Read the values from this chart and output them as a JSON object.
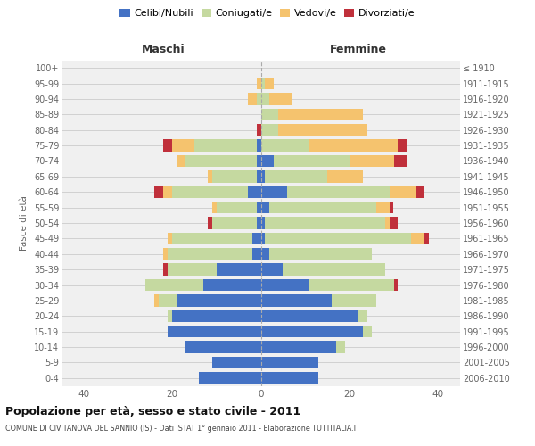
{
  "age_groups": [
    "0-4",
    "5-9",
    "10-14",
    "15-19",
    "20-24",
    "25-29",
    "30-34",
    "35-39",
    "40-44",
    "45-49",
    "50-54",
    "55-59",
    "60-64",
    "65-69",
    "70-74",
    "75-79",
    "80-84",
    "85-89",
    "90-94",
    "95-99",
    "100+"
  ],
  "birth_years": [
    "2006-2010",
    "2001-2005",
    "1996-2000",
    "1991-1995",
    "1986-1990",
    "1981-1985",
    "1976-1980",
    "1971-1975",
    "1966-1970",
    "1961-1965",
    "1956-1960",
    "1951-1955",
    "1946-1950",
    "1941-1945",
    "1936-1940",
    "1931-1935",
    "1926-1930",
    "1921-1925",
    "1916-1920",
    "1911-1915",
    "≤ 1910"
  ],
  "maschi": {
    "celibi": [
      14,
      11,
      17,
      21,
      20,
      19,
      13,
      10,
      2,
      2,
      1,
      1,
      3,
      1,
      1,
      1,
      0,
      0,
      0,
      0,
      0
    ],
    "coniugati": [
      0,
      0,
      0,
      0,
      1,
      4,
      13,
      11,
      19,
      18,
      10,
      9,
      17,
      10,
      16,
      14,
      0,
      0,
      1,
      0,
      0
    ],
    "vedovi": [
      0,
      0,
      0,
      0,
      0,
      1,
      0,
      0,
      1,
      1,
      0,
      1,
      2,
      1,
      2,
      5,
      0,
      0,
      2,
      1,
      0
    ],
    "divorziati": [
      0,
      0,
      0,
      0,
      0,
      0,
      0,
      1,
      0,
      0,
      1,
      0,
      2,
      0,
      0,
      2,
      1,
      0,
      0,
      0,
      0
    ]
  },
  "femmine": {
    "nubili": [
      13,
      13,
      17,
      23,
      22,
      16,
      11,
      5,
      2,
      1,
      1,
      2,
      6,
      1,
      3,
      0,
      0,
      0,
      0,
      0,
      0
    ],
    "coniugate": [
      0,
      0,
      2,
      2,
      2,
      10,
      19,
      23,
      23,
      33,
      27,
      24,
      23,
      14,
      17,
      11,
      4,
      4,
      2,
      1,
      0
    ],
    "vedove": [
      0,
      0,
      0,
      0,
      0,
      0,
      0,
      0,
      0,
      3,
      1,
      3,
      6,
      8,
      10,
      20,
      20,
      19,
      5,
      2,
      0
    ],
    "divorziate": [
      0,
      0,
      0,
      0,
      0,
      0,
      1,
      0,
      0,
      1,
      2,
      1,
      2,
      0,
      3,
      2,
      0,
      0,
      0,
      0,
      0
    ]
  },
  "colors": {
    "celibi_nubili": "#4472c4",
    "coniugati_e": "#c5d9a0",
    "vedovi_e": "#f5c36e",
    "divorziati_e": "#c0303b"
  },
  "title": "Popolazione per età, sesso e stato civile - 2011",
  "subtitle": "COMUNE DI CIVITANOVA DEL SANNIO (IS) - Dati ISTAT 1° gennaio 2011 - Elaborazione TUTTITALIA.IT",
  "ylabel_left": "Fasce di età",
  "xlabel_maschi": "Maschi",
  "xlabel_femmine": "Femmine",
  "xlim": 45,
  "background_color": "#f0f0f0",
  "grid_color": "#cccccc"
}
